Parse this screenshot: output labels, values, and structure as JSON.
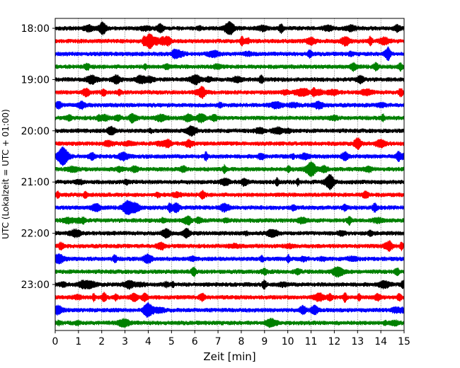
{
  "chart_data": {
    "type": "line",
    "subtype": "helicorder",
    "xlabel": "Zeit  [min]",
    "ylabel": "UTC (Lokalzeit = UTC + 01:00)",
    "xlim": [
      0,
      15
    ],
    "x_ticks": [
      0,
      1,
      2,
      3,
      4,
      5,
      6,
      7,
      8,
      9,
      10,
      11,
      12,
      13,
      14,
      15
    ],
    "x_grid": true,
    "y_ticks": [
      {
        "label": "18:00",
        "row": 0
      },
      {
        "label": "19:00",
        "row": 4
      },
      {
        "label": "20:00",
        "row": 8
      },
      {
        "label": "21:00",
        "row": 12
      },
      {
        "label": "22:00",
        "row": 16
      },
      {
        "label": "23:00",
        "row": 20
      }
    ],
    "row_interval_min": 15,
    "row_count": 24,
    "row_colors": [
      "#000000",
      "#ff0000",
      "#0000ff",
      "#008000"
    ]
  }
}
